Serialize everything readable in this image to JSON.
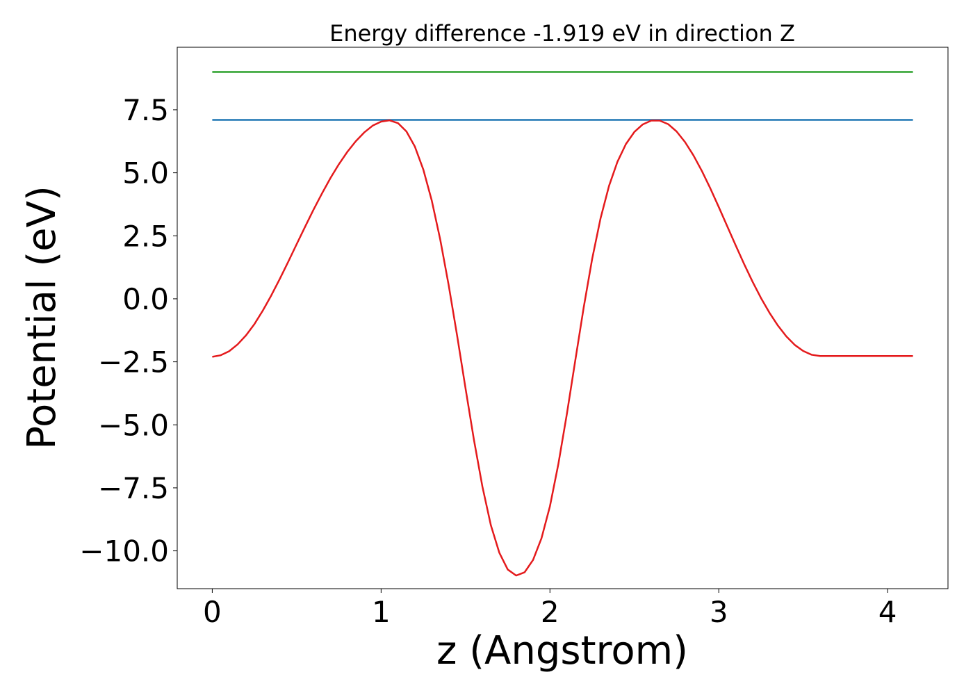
{
  "chart_data": {
    "type": "line",
    "title": "Energy difference -1.919 eV in direction Z",
    "xlabel": "z (Angstrom)",
    "ylabel": "Potential (eV)",
    "xlim": [
      -0.2075,
      4.3575
    ],
    "ylim": [
      -11.5,
      9.98
    ],
    "xticks": [
      0,
      1,
      2,
      3,
      4
    ],
    "xtick_labels": [
      "0",
      "1",
      "2",
      "3",
      "4"
    ],
    "yticks": [
      7.5,
      5.0,
      2.5,
      0.0,
      -2.5,
      -5.0,
      -7.5,
      -10.0
    ],
    "ytick_labels": [
      "7.5",
      "5.0",
      "2.5",
      "0.0",
      "−2.5",
      "−5.0",
      "−7.5",
      "−10.0"
    ],
    "grid": false,
    "legend": "none",
    "series": [
      {
        "color": "#2ca02c",
        "x": [
          0,
          4.15
        ],
        "y": [
          9.0,
          9.0
        ]
      },
      {
        "color": "#1f77b4",
        "x": [
          0,
          4.15
        ],
        "y": [
          7.1,
          7.1
        ]
      },
      {
        "color": "#e41a1c",
        "x": [
          0,
          0.05,
          0.1,
          0.15,
          0.2,
          0.25,
          0.3,
          0.35,
          0.4,
          0.45,
          0.5,
          0.55,
          0.6,
          0.65,
          0.7,
          0.75,
          0.8,
          0.85,
          0.9,
          0.95,
          1.0,
          1.05,
          1.1,
          1.15,
          1.2,
          1.25,
          1.3,
          1.35,
          1.4,
          1.45,
          1.5,
          1.55,
          1.6,
          1.65,
          1.7,
          1.75,
          1.8,
          1.85,
          1.9,
          1.95,
          2.0,
          2.05,
          2.1,
          2.15,
          2.2,
          2.25,
          2.3,
          2.35,
          2.4,
          2.45,
          2.5,
          2.55,
          2.6,
          2.65,
          2.7,
          2.75,
          2.8,
          2.85,
          2.9,
          2.95,
          3.0,
          3.05,
          3.1,
          3.15,
          3.2,
          3.25,
          3.3,
          3.35,
          3.4,
          3.45,
          3.5,
          3.55,
          3.6,
          3.65,
          3.7,
          3.75,
          3.8,
          3.85,
          3.9,
          3.95,
          4.0,
          4.05,
          4.1,
          4.15
        ],
        "y": [
          -2.3,
          -2.24,
          -2.08,
          -1.81,
          -1.45,
          -1.0,
          -0.46,
          0.14,
          0.79,
          1.47,
          2.17,
          2.86,
          3.54,
          4.18,
          4.79,
          5.34,
          5.83,
          6.25,
          6.6,
          6.87,
          7.03,
          7.08,
          6.97,
          6.64,
          6.04,
          5.13,
          3.9,
          2.36,
          0.55,
          -1.45,
          -3.55,
          -5.6,
          -7.45,
          -8.98,
          -10.07,
          -10.74,
          -10.98,
          -10.85,
          -10.36,
          -9.5,
          -8.23,
          -6.55,
          -4.58,
          -2.45,
          -0.34,
          1.58,
          3.2,
          4.48,
          5.44,
          6.14,
          6.62,
          6.92,
          7.07,
          7.07,
          6.93,
          6.64,
          6.22,
          5.69,
          5.07,
          4.38,
          3.64,
          2.88,
          2.12,
          1.38,
          0.68,
          0.03,
          -0.55,
          -1.06,
          -1.49,
          -1.83,
          -2.07,
          -2.22,
          -2.27,
          -2.27,
          -2.27,
          -2.27,
          -2.27,
          -2.27,
          -2.27,
          -2.27,
          -2.27,
          -2.27,
          -2.27,
          -2.27
        ]
      }
    ]
  }
}
